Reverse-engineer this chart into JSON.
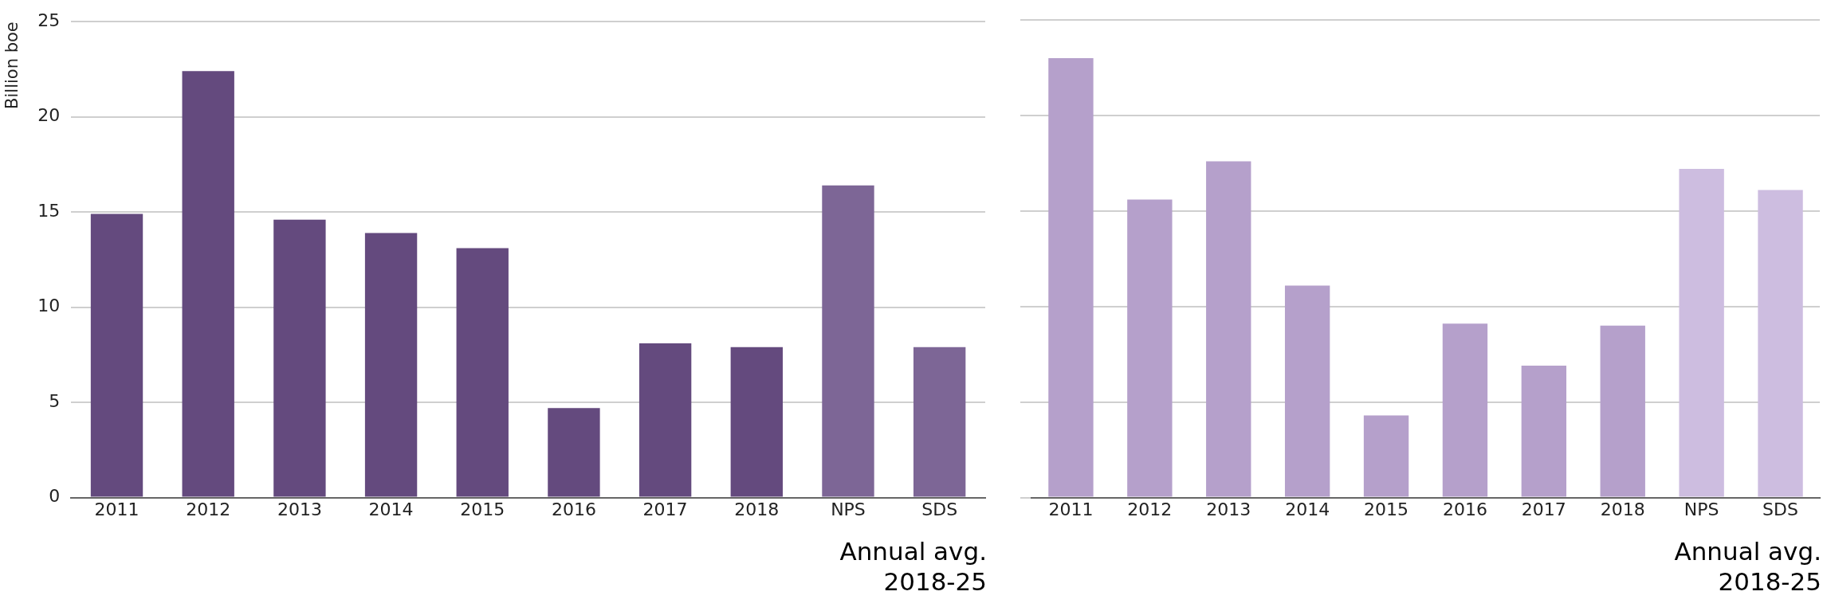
{
  "chart_data": [
    {
      "type": "bar",
      "ylabel": "Billion boe",
      "categories": [
        "2011",
        "2012",
        "2013",
        "2014",
        "2015",
        "2016",
        "2017",
        "2018",
        "NPS",
        "SDS"
      ],
      "values": [
        14.9,
        22.4,
        14.6,
        13.9,
        13.1,
        4.7,
        8.1,
        7.9,
        16.4,
        7.9
      ],
      "colors": [
        "#644a7e",
        "#644a7e",
        "#644a7e",
        "#644a7e",
        "#644a7e",
        "#644a7e",
        "#644a7e",
        "#644a7e",
        "#7d6696",
        "#7d6696"
      ],
      "ylim": [
        0,
        25
      ],
      "yticks": [
        0,
        5,
        10,
        15,
        20,
        25
      ],
      "grid": "y",
      "legend": false,
      "annotations": [
        "Annual avg.\n2018-25"
      ]
    },
    {
      "type": "bar",
      "categories": [
        "2011",
        "2012",
        "2013",
        "2014",
        "2015",
        "2016",
        "2017",
        "2018",
        "NPS",
        "SDS"
      ],
      "values": [
        23.0,
        15.6,
        17.6,
        11.1,
        4.3,
        9.1,
        6.9,
        9.0,
        17.2,
        16.1
      ],
      "colors": [
        "#b5a0cb",
        "#b5a0cb",
        "#b5a0cb",
        "#b5a0cb",
        "#b5a0cb",
        "#b5a0cb",
        "#b5a0cb",
        "#b5a0cb",
        "#cdbde0",
        "#cdbde0"
      ],
      "ylim": [
        0,
        25
      ],
      "yticks": [
        0,
        5,
        10,
        15,
        20,
        25
      ],
      "grid": "y",
      "legend": false,
      "tick_labels": "x",
      "annotations": [
        "Annual avg.\n2018-25"
      ]
    }
  ]
}
